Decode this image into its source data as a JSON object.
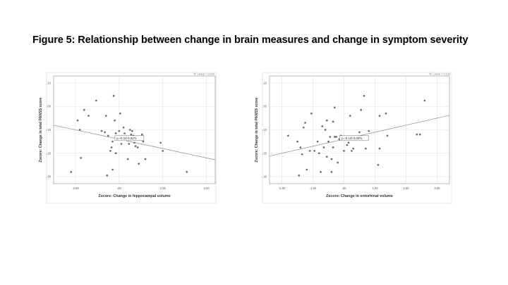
{
  "figure_title": "Figure 5: Relationship between change in brain measures and change in symptom severity",
  "chart_data": [
    {
      "type": "scatter",
      "xlabel": "Zscore:  Change in hippocampal volume",
      "ylabel": "Zscore: Change in total PANSS score",
      "xlim": [
        -3.0,
        4.4
      ],
      "ylim": [
        -3.3,
        1.3
      ],
      "x_ticks": [
        -2,
        0,
        2,
        4
      ],
      "x_tick_labels": [
        "-2.00",
        ".00",
        "2.00",
        "4.00"
      ],
      "y_ticks": [
        1,
        0,
        -1,
        -2,
        -3
      ],
      "y_tick_labels": [
        ".10",
        ".00",
        "-.10",
        "-.20",
        "-.30"
      ],
      "grid": true,
      "r2_label": "R² Linear = 0.093",
      "fit": {
        "intercept": -0.14,
        "slope": -0.02,
        "equation": "y=-0.14-0.02*x"
      },
      "points": [
        [
          -2.2,
          -2.8
        ],
        [
          -1.9,
          -0.6
        ],
        [
          -1.8,
          -1.0
        ],
        [
          -1.75,
          -2.2
        ],
        [
          -1.6,
          -0.15
        ],
        [
          -1.4,
          -0.4
        ],
        [
          -1.05,
          0.25
        ],
        [
          -0.8,
          -1.05
        ],
        [
          -0.65,
          -1.1
        ],
        [
          -0.6,
          -0.4
        ],
        [
          -0.55,
          -2.95
        ],
        [
          -0.5,
          -1.25
        ],
        [
          -0.4,
          -1.9
        ],
        [
          -0.35,
          -1.75
        ],
        [
          -0.3,
          -1.5
        ],
        [
          -0.25,
          0.45
        ],
        [
          -0.3,
          -2.7
        ],
        [
          -0.2,
          -0.6
        ],
        [
          -0.15,
          -2.0
        ],
        [
          -0.15,
          -1.15
        ],
        [
          -0.05,
          -1.3
        ],
        [
          0.0,
          -1.05
        ],
        [
          0.05,
          -0.3
        ],
        [
          0.1,
          -1.6
        ],
        [
          0.15,
          -1.35
        ],
        [
          0.2,
          -0.9
        ],
        [
          0.25,
          -1.15
        ],
        [
          0.3,
          -1.35
        ],
        [
          0.35,
          -1.3
        ],
        [
          0.4,
          -2.25
        ],
        [
          0.45,
          -1.6
        ],
        [
          0.5,
          -1.0
        ],
        [
          0.55,
          -1.2
        ],
        [
          0.6,
          -1.05
        ],
        [
          0.65,
          -1.25
        ],
        [
          0.7,
          -1.55
        ],
        [
          0.75,
          -1.7
        ],
        [
          0.85,
          -1.75
        ],
        [
          0.9,
          -2.45
        ],
        [
          0.95,
          -1.35
        ],
        [
          1.05,
          -1.2
        ],
        [
          1.1,
          -1.5
        ],
        [
          1.2,
          -2.25
        ],
        [
          1.9,
          -1.55
        ],
        [
          2.0,
          -1.9
        ],
        [
          3.1,
          -2.8
        ]
      ]
    },
    {
      "type": "scatter",
      "xlabel": "Zscore:  Change in entorhinal volume",
      "ylabel": "Zscore: Change in total PANSS score",
      "xlim": [
        -2.4,
        3.4
      ],
      "ylim": [
        -3.3,
        1.3
      ],
      "x_ticks": [
        -2,
        -1,
        0,
        1,
        2,
        3
      ],
      "x_tick_labels": [
        "-2.00",
        "-1.00",
        ".00",
        "1.00",
        "2.00",
        "3.00"
      ],
      "y_ticks": [
        1,
        0,
        -1,
        -2,
        -3
      ],
      "y_tick_labels": [
        ".10",
        ".00",
        "-.10",
        "-.20",
        "-.30"
      ],
      "grid": true,
      "r2_label": "R² Linear = 0.133",
      "fit": {
        "intercept": -0.14,
        "slope": 0.03,
        "equation": "y=-0.14+0.03*x"
      },
      "points": [
        [
          -1.8,
          -1.25
        ],
        [
          -1.5,
          -1.5
        ],
        [
          -1.45,
          -2.95
        ],
        [
          -1.4,
          -1.75
        ],
        [
          -1.35,
          -2.05
        ],
        [
          -1.3,
          -0.9
        ],
        [
          -1.25,
          -0.7
        ],
        [
          -1.2,
          -2.7
        ],
        [
          -1.1,
          -1.9
        ],
        [
          -1.05,
          -0.3
        ],
        [
          -0.95,
          -1.9
        ],
        [
          -0.85,
          -1.5
        ],
        [
          -0.8,
          -2.0
        ],
        [
          -0.75,
          -2.8
        ],
        [
          -0.7,
          -0.85
        ],
        [
          -0.65,
          -1.75
        ],
        [
          -0.6,
          -1.0
        ],
        [
          -0.55,
          -2.15
        ],
        [
          -0.55,
          -0.6
        ],
        [
          -0.5,
          -1.5
        ],
        [
          -0.45,
          -1.3
        ],
        [
          -0.4,
          -2.25
        ],
        [
          -0.4,
          -2.8
        ],
        [
          -0.35,
          -1.75
        ],
        [
          -0.35,
          -0.65
        ],
        [
          -0.3,
          -0.05
        ],
        [
          -0.3,
          -1.3
        ],
        [
          -0.25,
          -1.3
        ],
        [
          -0.2,
          -2.4
        ],
        [
          -0.15,
          -1.4
        ],
        [
          -0.1,
          -1.25
        ],
        [
          0.0,
          -1.9
        ],
        [
          0.1,
          -1.65
        ],
        [
          0.15,
          -1.55
        ],
        [
          0.2,
          -0.4
        ],
        [
          0.25,
          -1.9
        ],
        [
          0.3,
          -1.8
        ],
        [
          0.5,
          -1.1
        ],
        [
          0.55,
          -0.15
        ],
        [
          0.6,
          -1.4
        ],
        [
          0.65,
          0.45
        ],
        [
          0.7,
          -1.8
        ],
        [
          0.8,
          -1.05
        ],
        [
          1.1,
          -2.5
        ],
        [
          1.15,
          -1.8
        ],
        [
          1.15,
          -0.4
        ],
        [
          1.35,
          -0.3
        ],
        [
          1.4,
          -1.25
        ],
        [
          2.35,
          -1.2
        ],
        [
          2.45,
          -1.2
        ],
        [
          2.6,
          0.25
        ]
      ]
    }
  ]
}
